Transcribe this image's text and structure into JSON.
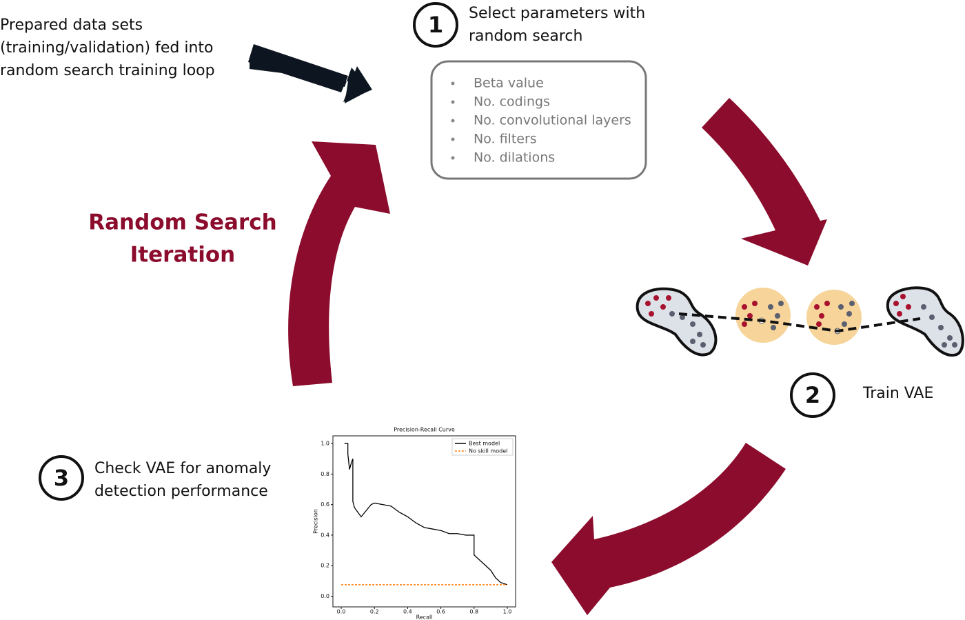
{
  "intro": {
    "lines": [
      "Prepared data sets",
      "(training/validation) fed into",
      "random search training loop"
    ]
  },
  "step1": {
    "number": "1",
    "lines": [
      "Select parameters with",
      "random search"
    ]
  },
  "parameters": [
    "Beta value",
    "No. codings",
    "No. convolutional layers",
    "No. filters",
    "No. dilations"
  ],
  "loop_label": {
    "lines": [
      "Random Search",
      "Iteration"
    ]
  },
  "step2": {
    "number": "2",
    "label": "Train VAE"
  },
  "step3": {
    "number": "3",
    "lines": [
      "Check VAE for anomaly",
      "detection performance"
    ]
  },
  "chart_data": {
    "type": "line",
    "title": "Precision-Recall Curve",
    "x_label": "Recall",
    "y_label": "Precision",
    "xlim": [
      -0.05,
      1.05
    ],
    "ylim": [
      -0.07,
      1.05
    ],
    "xticks": [
      {
        "value": 0,
        "label": "0.0"
      },
      {
        "value": 0.2,
        "label": "0.2"
      },
      {
        "value": 0.4,
        "label": "0.4"
      },
      {
        "value": 0.6,
        "label": "0.6"
      },
      {
        "value": 0.8,
        "label": "0.8"
      },
      {
        "value": 1,
        "label": "1.0"
      }
    ],
    "yticks": [
      {
        "value": 0,
        "label": "0.0"
      },
      {
        "value": 0.2,
        "label": "0.2"
      },
      {
        "value": 0.4,
        "label": "0.4"
      },
      {
        "value": 0.6,
        "label": "0.6"
      },
      {
        "value": 0.8,
        "label": "0.8"
      },
      {
        "value": 1,
        "label": "1.0"
      }
    ],
    "legend": "upper right",
    "series": [
      {
        "name": "Best model",
        "color": "#000000",
        "dash": false,
        "x": [
          0.02,
          0.04,
          0.04,
          0.05,
          0.06,
          0.07,
          0.07,
          0.08,
          0.1,
          0.12,
          0.15,
          0.18,
          0.2,
          0.25,
          0.3,
          0.35,
          0.4,
          0.45,
          0.5,
          0.55,
          0.6,
          0.65,
          0.7,
          0.75,
          0.8,
          0.8,
          0.85,
          0.9,
          0.93,
          0.96,
          1.0
        ],
        "values": [
          1.0,
          1.0,
          0.93,
          0.83,
          0.87,
          0.9,
          0.62,
          0.58,
          0.55,
          0.52,
          0.56,
          0.6,
          0.61,
          0.6,
          0.59,
          0.55,
          0.52,
          0.48,
          0.45,
          0.44,
          0.43,
          0.41,
          0.41,
          0.4,
          0.4,
          0.27,
          0.22,
          0.17,
          0.12,
          0.09,
          0.075
        ]
      },
      {
        "name": "No skill model",
        "color": "#ff7f0e",
        "dash": true,
        "x": [
          0,
          1
        ],
        "values": [
          0.075,
          0.075
        ]
      }
    ]
  }
}
